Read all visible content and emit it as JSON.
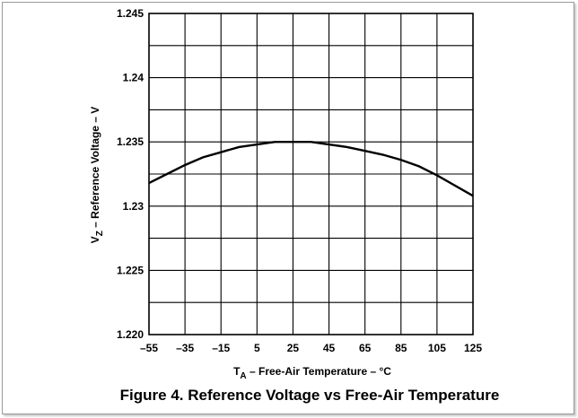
{
  "chart_data": {
    "type": "line",
    "title": "Figure 4. Reference Voltage vs Free-Air Temperature",
    "xlabel": {
      "main": "T",
      "sub": "A",
      "rest": " – Free-Air Temperature – °C"
    },
    "ylabel": {
      "main": "V",
      "sub": "Z",
      "rest": " – Reference Voltage – V"
    },
    "xlim": [
      -55,
      125
    ],
    "ylim": [
      1.22,
      1.245
    ],
    "x_ticks": [
      -55,
      -35,
      -15,
      5,
      25,
      45,
      65,
      85,
      105,
      125
    ],
    "x_tick_labels": [
      "–55",
      "–35",
      "–15",
      "5",
      "25",
      "45",
      "65",
      "85",
      "105",
      "125"
    ],
    "y_ticks": [
      1.22,
      1.225,
      1.23,
      1.235,
      1.24,
      1.245
    ],
    "y_tick_labels": [
      "1.220",
      "1.225",
      "1.23",
      "1.235",
      "1.24",
      "1.245"
    ],
    "y_minor_step": 0.0025,
    "grid": true,
    "series": [
      {
        "x": [
          -55,
          -45,
          -35,
          -25,
          -15,
          -5,
          5,
          15,
          25,
          35,
          45,
          55,
          65,
          75,
          85,
          95,
          105,
          115,
          125
        ],
        "values": [
          1.2318,
          1.2325,
          1.2332,
          1.2338,
          1.2342,
          1.2346,
          1.2348,
          1.235,
          1.235,
          1.235,
          1.2348,
          1.2346,
          1.2343,
          1.234,
          1.2336,
          1.2331,
          1.2324,
          1.2316,
          1.2308
        ]
      }
    ]
  }
}
